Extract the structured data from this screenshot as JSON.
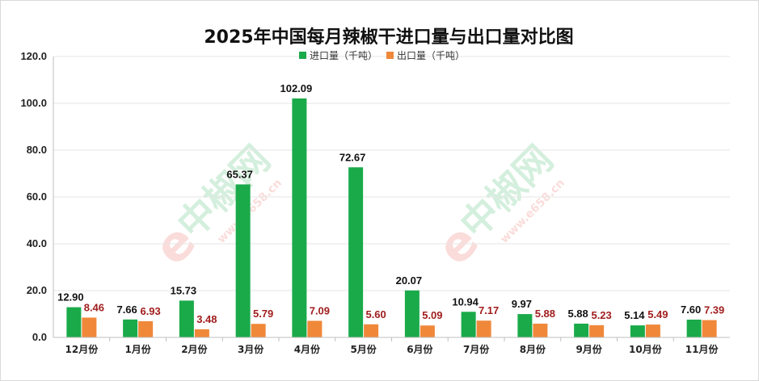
{
  "chart_data": {
    "type": "bar",
    "title": "2025年中国每月辣椒干进口量与出口量对比图",
    "categories": [
      "12月份",
      "1月份",
      "2月份",
      "3月份",
      "4月份",
      "5月份",
      "6月份",
      "7月份",
      "8月份",
      "9月份",
      "10月份",
      "11月份"
    ],
    "series": [
      {
        "name": "进口量（千吨）",
        "color": "#1aaa4a",
        "values": [
          12.9,
          7.66,
          15.73,
          65.37,
          102.09,
          72.67,
          20.07,
          10.94,
          9.97,
          5.88,
          5.14,
          7.6
        ]
      },
      {
        "name": "出口量（千吨）",
        "color": "#f0883a",
        "values": [
          8.46,
          6.93,
          3.48,
          5.79,
          7.09,
          5.6,
          5.09,
          7.17,
          5.88,
          5.23,
          5.49,
          7.39
        ]
      }
    ],
    "data_label_colors": [
      "#111111",
      "#a11d1d"
    ],
    "xlabel": "",
    "ylabel": "",
    "ylim": [
      0,
      120
    ],
    "yticks": [
      "0.0",
      "20.0",
      "40.0",
      "60.0",
      "80.0",
      "100.0",
      "120.0"
    ],
    "grid": true,
    "legend_position": "top-center"
  },
  "watermark": {
    "brand": "中椒网",
    "url": "www.e658.cn",
    "logo": "e",
    "color": "#1aaa4a",
    "logo_color": "#e8413a"
  }
}
